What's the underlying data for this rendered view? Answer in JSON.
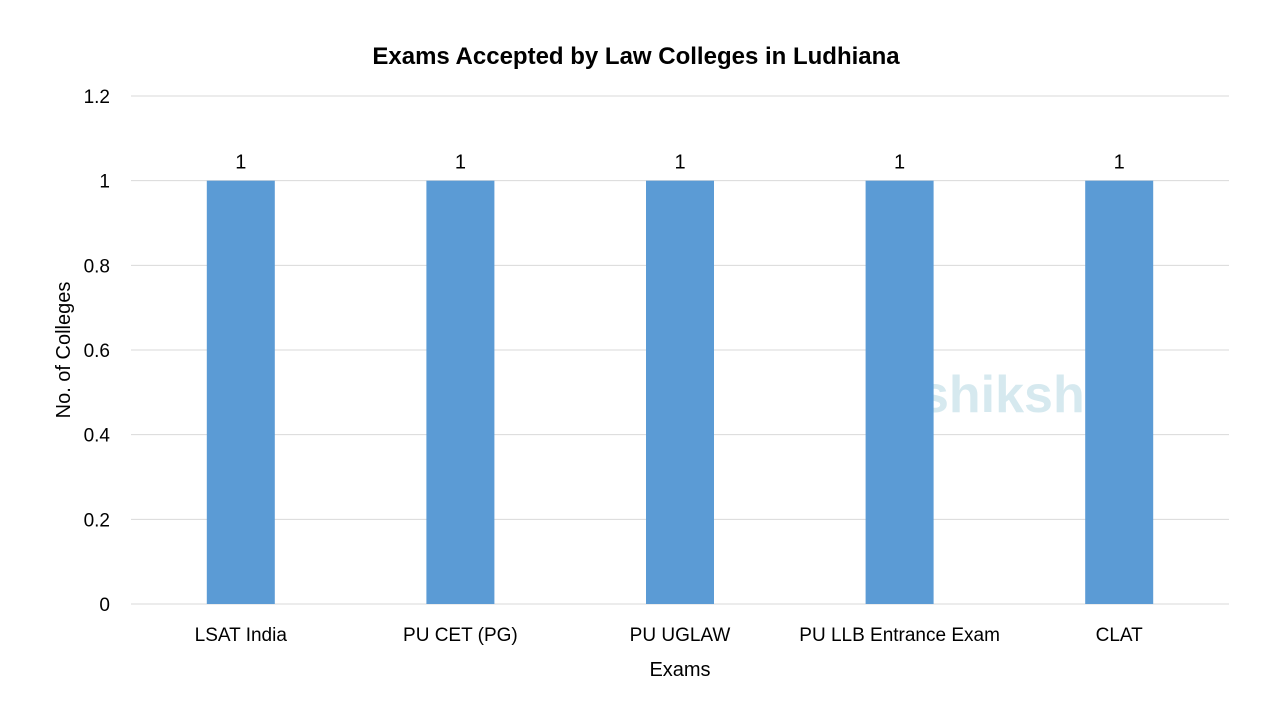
{
  "chart_data": {
    "type": "bar",
    "title": "Exams Accepted by Law Colleges in Ludhiana",
    "xlabel": "Exams",
    "ylabel": "No. of Colleges",
    "categories": [
      "LSAT India",
      "PU CET (PG)",
      "PU UGLAW",
      "PU LLB Entrance Exam",
      "CLAT"
    ],
    "values": [
      1,
      1,
      1,
      1,
      1
    ],
    "data_labels": [
      "1",
      "1",
      "1",
      "1",
      "1"
    ],
    "ylim": [
      0,
      1.2
    ],
    "yticks": [
      "0",
      "0.2",
      "0.4",
      "0.6",
      "0.8",
      "1",
      "1.2"
    ],
    "grid": true,
    "legend": "none",
    "bar_color": "#5b9bd5"
  },
  "watermark": {
    "text": "shiksha",
    "icon": "graduation-cap-icon",
    "color": "#6fb3c9"
  }
}
